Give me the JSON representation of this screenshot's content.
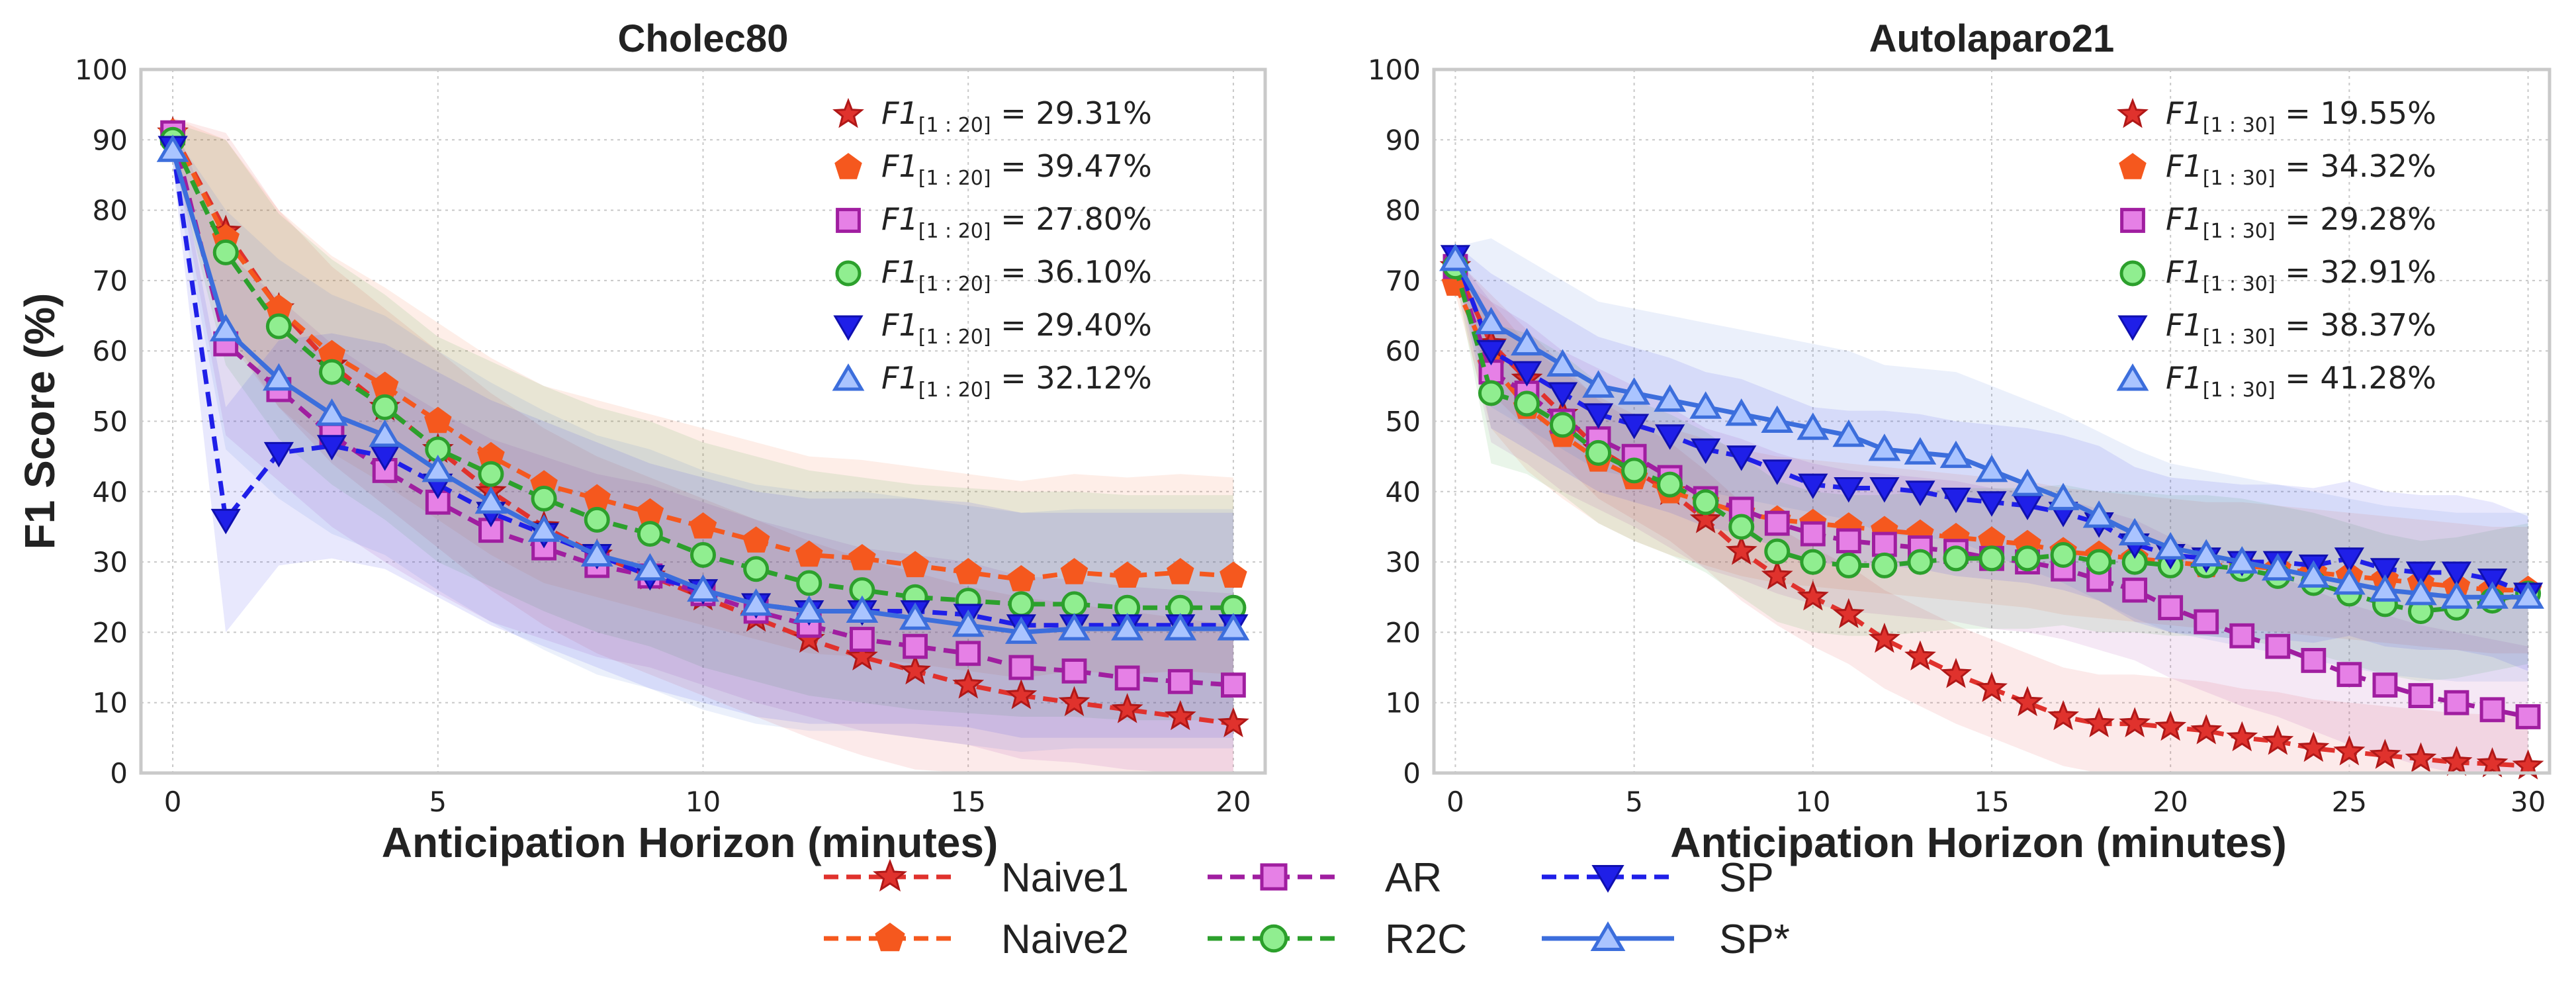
{
  "chart_data": [
    {
      "type": "line",
      "title": "Cholec80",
      "xlabel": "Anticipation Horizon (minutes)",
      "ylabel": "F1 Score (%)",
      "xlim": [
        -0.6,
        20.6
      ],
      "ylim": [
        0,
        100
      ],
      "xticks": [
        0,
        5,
        10,
        15,
        20
      ],
      "yticks": [
        0,
        10,
        20,
        30,
        40,
        50,
        60,
        70,
        80,
        90,
        100
      ],
      "grid": true,
      "legend_position": "top-right",
      "x": [
        0,
        1,
        2,
        3,
        4,
        5,
        6,
        7,
        8,
        9,
        10,
        11,
        12,
        13,
        14,
        15,
        16,
        17,
        18,
        19,
        20
      ],
      "series": [
        {
          "name": "Naive1",
          "legend_prefix": "F1",
          "legend_sub": "[1 : 20]",
          "legend_value": " = 29.31%",
          "color": "#e0322d",
          "marker": "star",
          "dash": "dashed",
          "values": [
            91,
            77,
            66,
            58,
            52,
            46,
            40,
            35,
            31,
            28,
            25,
            22,
            19,
            16.5,
            14.5,
            12.5,
            11,
            10,
            9,
            8,
            7
          ],
          "band": 14
        },
        {
          "name": "Naive2",
          "legend_prefix": "F1",
          "legend_sub": "[1 : 20]",
          "legend_value": " = 39.47%",
          "color": "#f5581e",
          "marker": "pentagon",
          "dash": "dashed",
          "values": [
            91,
            76,
            66,
            59.5,
            55,
            50,
            45,
            41,
            39,
            37,
            35,
            33,
            31,
            30.5,
            29.5,
            28.5,
            27.5,
            28.5,
            28,
            28.5,
            28
          ],
          "band": 14
        },
        {
          "name": "AR",
          "legend_prefix": "F1",
          "legend_sub": "[1 : 20]",
          "legend_value": " = 27.80%",
          "color": "#a01ea0",
          "fill": "#e680e6",
          "marker": "square",
          "dash": "dashed",
          "values": [
            91,
            61,
            54.5,
            48,
            43,
            38.5,
            34.5,
            32,
            29.5,
            28,
            25.5,
            23,
            21,
            19,
            18,
            17,
            15,
            14.5,
            13.5,
            13,
            12.5
          ],
          "band": 13
        },
        {
          "name": "R2C",
          "legend_prefix": "F1",
          "legend_sub": "[1 : 20]",
          "legend_value": " = 36.10%",
          "color": "#2ca02c",
          "fill": "#90ee90",
          "marker": "circle",
          "dash": "dashed",
          "values": [
            90,
            74,
            63.5,
            57,
            52,
            46,
            42.5,
            39,
            36,
            34,
            31,
            29,
            27,
            26,
            25,
            24.5,
            24,
            24,
            23.5,
            23.5,
            23.5
          ],
          "band": 16
        },
        {
          "name": "SP",
          "legend_prefix": "F1",
          "legend_sub": "[1 : 20]",
          "legend_value": " = 29.40%",
          "color": "#1f1fe8",
          "fill": "#1f1fe8",
          "marker": "tri-down",
          "dash": "dashed",
          "values": [
            89,
            36,
            45.5,
            46.5,
            45,
            41,
            37,
            34,
            31,
            28,
            26,
            24,
            23,
            23,
            23,
            22.5,
            21,
            21,
            21,
            21,
            21
          ],
          "band": 16
        },
        {
          "name": "SP*",
          "legend_prefix": "F1",
          "legend_sub": "[1 : 20]",
          "legend_value": " = 32.12%",
          "color": "#3c6edc",
          "fill": "#aac4ff",
          "marker": "tri-up",
          "dash": "solid",
          "values": [
            88.5,
            63,
            56,
            51,
            48,
            43,
            38.5,
            34.5,
            31,
            29,
            26,
            24,
            23,
            23,
            22,
            21,
            20,
            20.5,
            20.5,
            20.5,
            20.5
          ],
          "band": 17
        }
      ]
    },
    {
      "type": "line",
      "title": "Autolaparo21",
      "xlabel": "Anticipation Horizon (minutes)",
      "ylabel": "",
      "xlim": [
        -0.6,
        30.6
      ],
      "ylim": [
        0,
        100
      ],
      "xticks": [
        0,
        5,
        10,
        15,
        20,
        25,
        30
      ],
      "yticks": [
        0,
        10,
        20,
        30,
        40,
        50,
        60,
        70,
        80,
        90,
        100
      ],
      "grid": true,
      "legend_position": "top-right",
      "x": [
        0,
        1,
        2,
        3,
        4,
        5,
        6,
        7,
        8,
        9,
        10,
        11,
        12,
        13,
        14,
        15,
        16,
        17,
        18,
        19,
        20,
        21,
        22,
        23,
        24,
        25,
        26,
        27,
        28,
        29,
        30
      ],
      "series": [
        {
          "name": "Naive1",
          "legend_prefix": "F1",
          "legend_sub": "[1 : 30]",
          "legend_value": " = 19.55%",
          "color": "#e0322d",
          "marker": "star",
          "dash": "dashed",
          "values": [
            72,
            61,
            56,
            51,
            46,
            43,
            40,
            36,
            31.5,
            28,
            25,
            22.5,
            19,
            16.5,
            14,
            12,
            10,
            8,
            7,
            7,
            6.5,
            6,
            5,
            4.5,
            3.5,
            3,
            2.5,
            2,
            1.5,
            1.3,
            1
          ],
          "band": 7
        },
        {
          "name": "Naive2",
          "legend_prefix": "F1",
          "legend_sub": "[1 : 30]",
          "legend_value": " = 34.32%",
          "color": "#f5581e",
          "marker": "pentagon",
          "dash": "dashed",
          "values": [
            69.5,
            58,
            52,
            48,
            44.5,
            42,
            40,
            38.5,
            37,
            36,
            35.5,
            35,
            34.5,
            34,
            33.5,
            33,
            32.5,
            31.5,
            31,
            30.5,
            30,
            29.5,
            29.5,
            29,
            28.5,
            28,
            27.5,
            27,
            26.5,
            26,
            26
          ],
          "band": 9
        },
        {
          "name": "AR",
          "legend_prefix": "F1",
          "legend_sub": "[1 : 30]",
          "legend_value": " = 29.28%",
          "color": "#a01ea0",
          "fill": "#e680e6",
          "marker": "square",
          "dash": "dashed",
          "values": [
            72,
            57,
            54,
            50,
            47.5,
            45,
            42,
            39,
            37.5,
            35.5,
            34,
            33,
            32.5,
            32,
            31.5,
            30.5,
            30,
            29,
            27.5,
            26,
            23.5,
            21.5,
            19.5,
            18,
            16,
            14,
            12.5,
            11,
            10,
            9,
            8
          ],
          "band": 10
        },
        {
          "name": "R2C",
          "legend_prefix": "F1",
          "legend_sub": "[1 : 30]",
          "legend_value": " = 32.91%",
          "color": "#2ca02c",
          "fill": "#90ee90",
          "marker": "circle",
          "dash": "dashed",
          "values": [
            72,
            54,
            52.5,
            49.5,
            45.5,
            43,
            41,
            38.5,
            35,
            31.5,
            30,
            29.5,
            29.5,
            30,
            30.5,
            30.5,
            30.5,
            31,
            30,
            30,
            29.5,
            29.5,
            29,
            28,
            27,
            25.5,
            24,
            23,
            23.5,
            24.5,
            25.5
          ],
          "band": 10
        },
        {
          "name": "SP",
          "legend_prefix": "F1",
          "legend_sub": "[1 : 30]",
          "legend_value": " = 38.37%",
          "color": "#1f1fe8",
          "fill": "#1f1fe8",
          "marker": "tri-down",
          "dash": "dashed",
          "values": [
            73.5,
            60,
            57,
            54,
            51,
            49.5,
            48,
            46,
            45,
            43,
            41,
            40.5,
            40.5,
            40,
            39,
            38.5,
            38,
            37,
            35.5,
            32.5,
            31,
            30.5,
            30,
            30,
            29.5,
            30.5,
            29,
            28.5,
            28.5,
            27.5,
            25.5
          ],
          "band": 11
        },
        {
          "name": "SP*",
          "legend_prefix": "F1",
          "legend_sub": "[1 : 30]",
          "legend_value": " = 41.28%",
          "color": "#3c6edc",
          "fill": "#aac4ff",
          "marker": "tri-up",
          "dash": "solid",
          "values": [
            73,
            64,
            61,
            58,
            55,
            54,
            53,
            52,
            51,
            50,
            49,
            48,
            46,
            45.5,
            45,
            43,
            41,
            39,
            36.5,
            34,
            32,
            31,
            30,
            29,
            28,
            27,
            26,
            25.5,
            25,
            25,
            25
          ],
          "band": 12
        }
      ]
    }
  ],
  "bottom_legend": [
    {
      "name": "Naive1",
      "label": "Naive1"
    },
    {
      "name": "Naive2",
      "label": "Naive2"
    },
    {
      "name": "AR",
      "label": "AR"
    },
    {
      "name": "R2C",
      "label": "R2C"
    },
    {
      "name": "SP",
      "label": "SP"
    },
    {
      "name": "SP*",
      "label": "SP*"
    }
  ]
}
